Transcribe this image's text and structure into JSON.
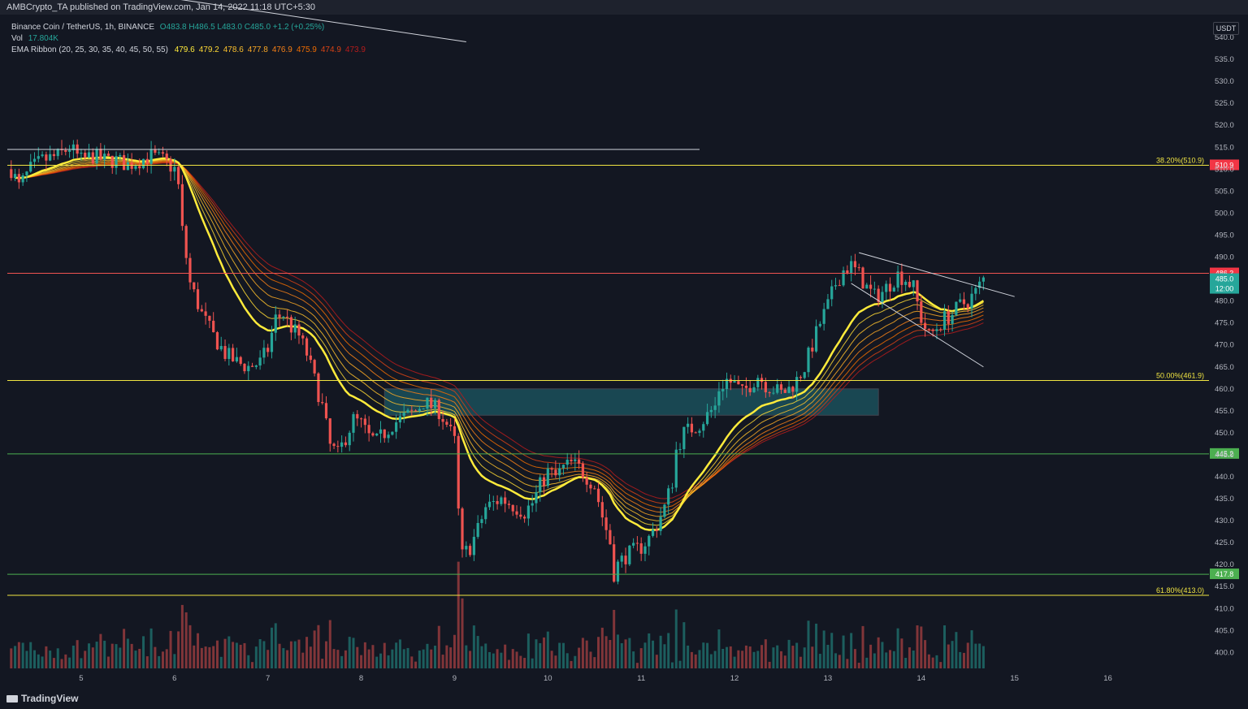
{
  "header": {
    "publisher": "AMBCrypto_TA published on TradingView.com, Jan 14, 2022 11:18 UTC+5:30"
  },
  "legend": {
    "symbol": "Binance Coin / TetherUS, 1h, BINANCE",
    "ohlc": "O483.8 H486.5 L483.0 C485.0 +1.2 (+0.25%)",
    "vol_label": "Vol",
    "vol_value": "17.804K",
    "ema_label": "EMA Ribbon (20, 25, 30, 35, 40, 45, 50, 55)",
    "ema_values": [
      "479.6",
      "479.2",
      "478.6",
      "477.8",
      "476.9",
      "475.9",
      "474.9",
      "473.9"
    ]
  },
  "currency": "USDT",
  "footer": {
    "brand": "TradingView"
  },
  "colors": {
    "background": "#131722",
    "up": "#26a69a",
    "down": "#ef5350",
    "ema": [
      "#ffeb3b",
      "#fdd835",
      "#fbc02d",
      "#f9a825",
      "#f57f17",
      "#ef6c00",
      "#d84315",
      "#b71c1c"
    ],
    "fib": "#f0e442",
    "resistance": "#ef5350",
    "support": "#4caf50",
    "zone": "#1f6f7a"
  },
  "chart_data": {
    "type": "candlestick",
    "y_ticks": [
      400,
      405,
      410,
      415,
      420,
      425,
      430,
      435,
      440,
      445,
      450,
      455,
      460,
      465,
      470,
      475,
      480,
      485,
      490,
      495,
      500,
      505,
      510,
      515,
      520,
      525,
      530,
      535,
      540
    ],
    "ylim": [
      396,
      545
    ],
    "x_ticks": [
      "5",
      "6",
      "7",
      "8",
      "9",
      "10",
      "11",
      "12",
      "13",
      "14",
      "15",
      "16"
    ],
    "x_tick_times": [
      0,
      24,
      48,
      72,
      96,
      120,
      144,
      168,
      192,
      216,
      240,
      264
    ],
    "xlim": [
      -19,
      290
    ],
    "path_keypoints": [
      [
        -18,
        510
      ],
      [
        -16,
        506
      ],
      [
        -13,
        510
      ],
      [
        -10,
        512
      ],
      [
        -6,
        513
      ],
      [
        -3,
        515
      ],
      [
        0,
        512
      ],
      [
        3,
        513
      ],
      [
        6,
        512
      ],
      [
        9,
        512
      ],
      [
        12,
        511
      ],
      [
        15,
        512
      ],
      [
        18,
        513
      ],
      [
        21,
        512
      ],
      [
        24,
        510
      ],
      [
        25,
        506
      ],
      [
        26,
        496
      ],
      [
        28,
        484
      ],
      [
        31,
        477
      ],
      [
        34,
        472
      ],
      [
        37,
        468
      ],
      [
        40,
        466
      ],
      [
        43,
        465
      ],
      [
        46,
        466
      ],
      [
        48,
        469
      ],
      [
        50,
        476
      ],
      [
        52,
        477
      ],
      [
        54,
        474
      ],
      [
        56,
        472
      ],
      [
        58,
        468
      ],
      [
        60,
        462
      ],
      [
        62,
        456
      ],
      [
        64,
        447
      ],
      [
        66,
        445
      ],
      [
        68,
        449
      ],
      [
        70,
        453
      ],
      [
        72,
        452
      ],
      [
        74,
        449
      ],
      [
        76,
        448
      ],
      [
        78,
        450
      ],
      [
        80,
        452
      ],
      [
        82,
        453
      ],
      [
        84,
        454
      ],
      [
        86,
        455
      ],
      [
        88,
        457
      ],
      [
        90,
        456
      ],
      [
        92,
        455
      ],
      [
        94,
        452
      ],
      [
        96,
        448
      ],
      [
        97,
        432
      ],
      [
        98,
        422
      ],
      [
        100,
        424
      ],
      [
        102,
        428
      ],
      [
        104,
        433
      ],
      [
        106,
        434
      ],
      [
        108,
        435
      ],
      [
        110,
        434
      ],
      [
        112,
        433
      ],
      [
        114,
        432
      ],
      [
        116,
        434
      ],
      [
        118,
        438
      ],
      [
        120,
        441
      ],
      [
        122,
        440
      ],
      [
        124,
        442
      ],
      [
        126,
        443
      ],
      [
        128,
        442
      ],
      [
        130,
        440
      ],
      [
        132,
        438
      ],
      [
        134,
        431
      ],
      [
        136,
        425
      ],
      [
        137,
        418
      ],
      [
        138,
        420
      ],
      [
        140,
        422
      ],
      [
        142,
        423
      ],
      [
        144,
        424
      ],
      [
        146,
        426
      ],
      [
        148,
        429
      ],
      [
        150,
        433
      ],
      [
        152,
        439
      ],
      [
        153,
        446
      ],
      [
        155,
        450
      ],
      [
        157,
        451
      ],
      [
        159,
        452
      ],
      [
        161,
        454
      ],
      [
        163,
        456
      ],
      [
        164,
        460
      ],
      [
        166,
        462
      ],
      [
        168,
        461
      ],
      [
        170,
        459
      ],
      [
        172,
        461
      ],
      [
        174,
        463
      ],
      [
        176,
        461
      ],
      [
        178,
        460
      ],
      [
        180,
        459
      ],
      [
        182,
        460
      ],
      [
        184,
        462
      ],
      [
        186,
        465
      ],
      [
        188,
        470
      ],
      [
        190,
        475
      ],
      [
        192,
        479
      ],
      [
        194,
        484
      ],
      [
        196,
        487
      ],
      [
        198,
        488
      ],
      [
        200,
        486
      ],
      [
        202,
        483
      ],
      [
        204,
        481
      ],
      [
        206,
        482
      ],
      [
        208,
        484
      ],
      [
        210,
        486
      ],
      [
        212,
        485
      ],
      [
        214,
        483
      ],
      [
        216,
        476
      ],
      [
        218,
        472
      ],
      [
        220,
        474
      ],
      [
        222,
        476
      ],
      [
        224,
        477
      ],
      [
        226,
        479
      ],
      [
        228,
        480
      ],
      [
        230,
        482
      ],
      [
        232,
        485
      ]
    ],
    "seed": 7,
    "ema_periods": [
      20,
      25,
      30,
      35,
      40,
      45,
      50,
      55
    ],
    "ema_last_values": [
      479.6,
      479.2,
      478.6,
      477.8,
      476.9,
      475.9,
      474.9,
      473.9
    ],
    "volume_mean_scale": 0.25,
    "horizontal_lines": [
      {
        "price": 510.9,
        "color": "#f0e442",
        "label": "38.20%(510.9)",
        "tag": "510.9",
        "tag_bg": "#f23645"
      },
      {
        "price": 486.3,
        "color": "#ef5350",
        "tag": "486.3",
        "tag_bg": "#f23645"
      },
      {
        "price": 461.9,
        "color": "#f0e442",
        "label": "50.00%(461.9)"
      },
      {
        "price": 445.2,
        "color": "#4caf50",
        "tag": "445.2",
        "tag_bg": "#4caf50"
      },
      {
        "price": 417.8,
        "color": "#4caf50",
        "tag": "417.8",
        "tag_bg": "#4caf50"
      },
      {
        "price": 413.0,
        "color": "#f0e442",
        "label": "61.80%(413.0)"
      }
    ],
    "white_line": {
      "price": 514.5,
      "t_from": -19,
      "t_to": 159
    },
    "trendlines": [
      {
        "p1": [
          200,
          491
        ],
        "p2": [
          240,
          481
        ],
        "color": "#d1d4dc"
      },
      {
        "p1": [
          198,
          484
        ],
        "p2": [
          232,
          465
        ],
        "color": "#d1d4dc"
      },
      {
        "p1": [
          -8,
          553
        ],
        "p2": [
          99,
          539
        ],
        "color": "#d1d4dc"
      }
    ],
    "zone": {
      "t_from": 78,
      "t_to": 205,
      "p_from": 454,
      "p_to": 460
    },
    "last_price_tag": {
      "price": "485.0",
      "countdown": "12:00",
      "bg": "#26a69a"
    }
  }
}
